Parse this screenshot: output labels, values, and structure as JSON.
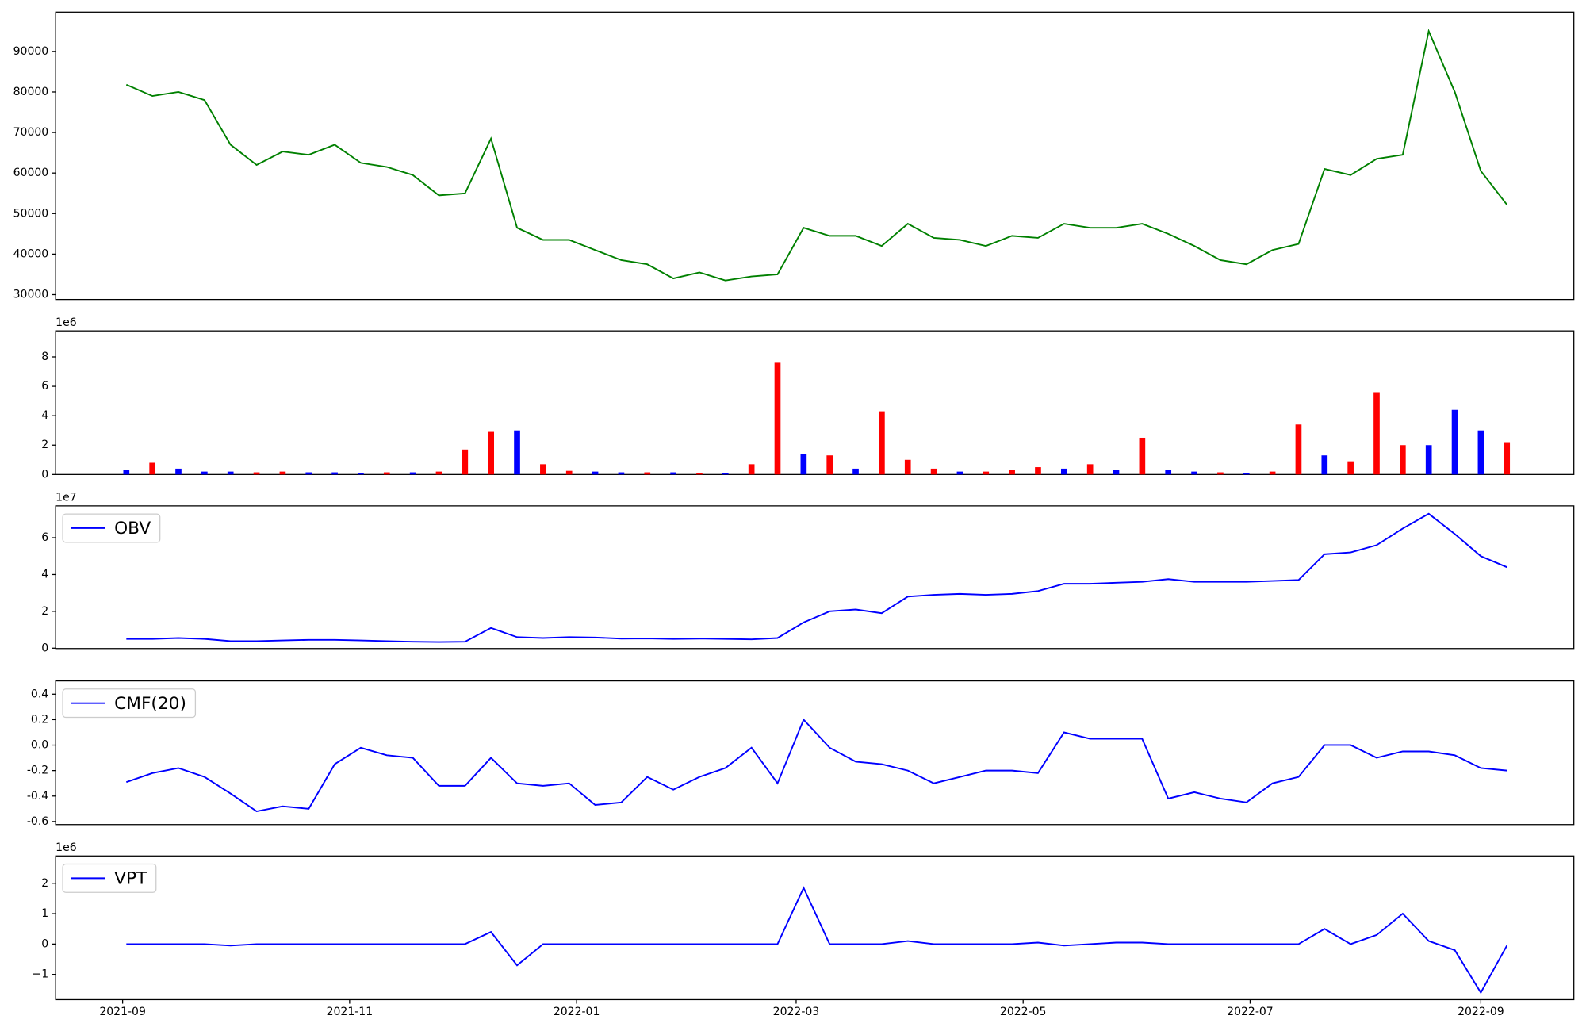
{
  "chart_data": [
    {
      "type": "line",
      "x": [
        "2021-09-02",
        "2021-09-09",
        "2021-09-16",
        "2021-09-23",
        "2021-09-30",
        "2021-10-07",
        "2021-10-14",
        "2021-10-21",
        "2021-10-28",
        "2021-11-04",
        "2021-11-11",
        "2021-11-18",
        "2021-11-25",
        "2021-12-02",
        "2021-12-09",
        "2021-12-16",
        "2021-12-23",
        "2021-12-30",
        "2022-01-06",
        "2022-01-13",
        "2022-01-20",
        "2022-01-27",
        "2022-02-03",
        "2022-02-10",
        "2022-02-17",
        "2022-02-24",
        "2022-03-03",
        "2022-03-10",
        "2022-03-17",
        "2022-03-24",
        "2022-03-31",
        "2022-04-07",
        "2022-04-14",
        "2022-04-21",
        "2022-04-28",
        "2022-05-05",
        "2022-05-12",
        "2022-05-19",
        "2022-05-26",
        "2022-06-02",
        "2022-06-09",
        "2022-06-16",
        "2022-06-23",
        "2022-06-30",
        "2022-07-07",
        "2022-07-14",
        "2022-07-21",
        "2022-07-28",
        "2022-08-04",
        "2022-08-11",
        "2022-08-18",
        "2022-08-25",
        "2022-09-01",
        "2022-09-08"
      ],
      "series": [
        {
          "color": "#008000",
          "values": [
            81800,
            79000,
            80000,
            78000,
            67000,
            62000,
            65300,
            64500,
            67000,
            62500,
            61500,
            59500,
            54500,
            55000,
            68500,
            46500,
            43500,
            43500,
            41000,
            38500,
            37500,
            34000,
            35500,
            33500,
            34500,
            35000,
            46500,
            44500,
            44500,
            42000,
            47500,
            44000,
            43500,
            42000,
            44500,
            44000,
            47500,
            46500,
            46500,
            47500,
            45000,
            42000,
            38500,
            37500,
            41000,
            42500,
            61000,
            59500,
            63500,
            64500,
            95000,
            80000,
            60500,
            52200
          ]
        }
      ],
      "ylim": [
        28800,
        99700
      ],
      "yticks": [
        30000,
        40000,
        50000,
        60000,
        70000,
        80000,
        90000
      ]
    },
    {
      "type": "bar",
      "values": [
        300000,
        800000,
        400000,
        200000,
        200000,
        150000,
        200000,
        150000,
        150000,
        100000,
        150000,
        150000,
        200000,
        1700000,
        2900000,
        3000000,
        700000,
        250000,
        200000,
        150000,
        150000,
        150000,
        100000,
        100000,
        700000,
        7600000,
        1400000,
        1300000,
        400000,
        4300000,
        1000000,
        400000,
        200000,
        200000,
        300000,
        500000,
        400000,
        700000,
        300000,
        2500000,
        300000,
        200000,
        150000,
        100000,
        200000,
        3400000,
        1300000,
        900000,
        5600000,
        2000000,
        2000000,
        4400000,
        3000000,
        2200000
      ],
      "colors": [
        "#0000ff",
        "#ff0000",
        "#0000ff",
        "#0000ff",
        "#0000ff",
        "#ff0000",
        "#ff0000",
        "#0000ff",
        "#0000ff",
        "#0000ff",
        "#ff0000",
        "#0000ff",
        "#ff0000",
        "#ff0000",
        "#ff0000",
        "#0000ff",
        "#ff0000",
        "#ff0000",
        "#0000ff",
        "#0000ff",
        "#ff0000",
        "#0000ff",
        "#ff0000",
        "#0000ff",
        "#ff0000",
        "#ff0000",
        "#0000ff",
        "#ff0000",
        "#0000ff",
        "#ff0000",
        "#ff0000",
        "#ff0000",
        "#0000ff",
        "#ff0000",
        "#ff0000",
        "#ff0000",
        "#0000ff",
        "#ff0000",
        "#0000ff",
        "#ff0000",
        "#0000ff",
        "#0000ff",
        "#ff0000",
        "#0000ff",
        "#ff0000",
        "#ff0000",
        "#0000ff",
        "#ff0000",
        "#ff0000",
        "#ff0000",
        "#0000ff",
        "#0000ff",
        "#0000ff",
        "#ff0000"
      ],
      "offset_label": "1e6",
      "ylim": [
        0,
        9770000
      ],
      "yticks": [
        0,
        {
          "value": 2000000,
          "label": "2"
        },
        {
          "value": 4000000,
          "label": "4"
        },
        {
          "value": 6000000,
          "label": "6"
        },
        {
          "value": 8000000,
          "label": "8"
        }
      ]
    },
    {
      "type": "line",
      "series": [
        {
          "name": "OBV",
          "color": "#0000ff",
          "values": [
            5000000,
            5000000,
            5500000,
            5000000,
            3800000,
            3800000,
            4200000,
            4500000,
            4500000,
            4200000,
            3800000,
            3500000,
            3300000,
            3500000,
            11000000,
            6000000,
            5500000,
            6000000,
            5800000,
            5200000,
            5300000,
            5000000,
            5200000,
            5000000,
            4800000,
            5500000,
            14000000,
            20000000,
            21000000,
            19000000,
            28000000,
            29000000,
            29500000,
            29000000,
            29500000,
            31000000,
            35000000,
            35000000,
            35500000,
            36000000,
            37500000,
            36000000,
            36000000,
            36000000,
            36500000,
            37000000,
            51000000,
            52000000,
            56000000,
            65000000,
            73000000,
            62000000,
            50000000,
            44000000
          ]
        }
      ],
      "legend": "upper left",
      "offset_label": "1e7",
      "ylim": [
        -200000,
        77300000
      ],
      "yticks": [
        0,
        {
          "value": 20000000,
          "label": "2"
        },
        {
          "value": 40000000,
          "label": "4"
        },
        {
          "value": 60000000,
          "label": "6"
        }
      ]
    },
    {
      "type": "line",
      "series": [
        {
          "name": "CMF(20)",
          "color": "#0000ff",
          "values": [
            -0.29,
            -0.22,
            -0.18,
            -0.25,
            -0.38,
            -0.52,
            -0.48,
            -0.5,
            -0.15,
            -0.02,
            -0.08,
            -0.1,
            -0.32,
            -0.32,
            -0.1,
            -0.3,
            -0.32,
            -0.3,
            -0.47,
            -0.45,
            -0.25,
            -0.35,
            -0.25,
            -0.18,
            -0.02,
            -0.3,
            0.2,
            -0.02,
            -0.13,
            -0.15,
            -0.2,
            -0.3,
            -0.25,
            -0.2,
            -0.2,
            -0.22,
            0.1,
            0.05,
            0.05,
            0.05,
            -0.42,
            -0.37,
            -0.42,
            -0.45,
            -0.3,
            -0.25,
            0.0,
            0.0,
            -0.1,
            -0.05,
            -0.05,
            -0.08,
            -0.18,
            -0.2
          ]
        }
      ],
      "legend": "upper left",
      "ylim": [
        -0.624,
        0.504
      ],
      "yticks": [
        -0.6,
        -0.4,
        -0.2,
        {
          "value": 0,
          "label": "0.0"
        },
        0.2,
        0.4
      ]
    },
    {
      "type": "line",
      "series": [
        {
          "name": "VPT",
          "color": "#0000ff",
          "values": [
            0,
            0,
            0,
            0,
            -50000,
            0,
            0,
            0,
            0,
            0,
            0,
            0,
            0,
            0,
            400000,
            -700000,
            0,
            0,
            0,
            0,
            0,
            0,
            0,
            0,
            0,
            0,
            1850000,
            0,
            0,
            0,
            100000,
            0,
            0,
            0,
            0,
            50000,
            -50000,
            0,
            50000,
            50000,
            0,
            0,
            0,
            0,
            0,
            0,
            500000,
            0,
            300000,
            1000000,
            100000,
            -200000,
            -1600000,
            -50000
          ]
        }
      ],
      "legend": "upper left",
      "offset_label": "1e6",
      "ylim": [
        -1830000,
        2900000
      ],
      "yticks": [
        {
          "value": -1000000,
          "label": "−1"
        },
        0,
        {
          "value": 1000000,
          "label": "1"
        },
        {
          "value": 2000000,
          "label": "2"
        }
      ],
      "xlim": [
        "2021-08-14",
        "2022-09-26"
      ],
      "xticks": [
        {
          "value": "2021-09-01",
          "label": "2021-09"
        },
        {
          "value": "2021-11-01",
          "label": "2021-11"
        },
        {
          "value": "2022-01-01",
          "label": "2022-01"
        },
        {
          "value": "2022-03-01",
          "label": "2022-03"
        },
        {
          "value": "2022-05-01",
          "label": "2022-05"
        },
        {
          "value": "2022-07-01",
          "label": "2022-07"
        },
        {
          "value": "2022-09-01",
          "label": "2022-09"
        }
      ]
    }
  ]
}
